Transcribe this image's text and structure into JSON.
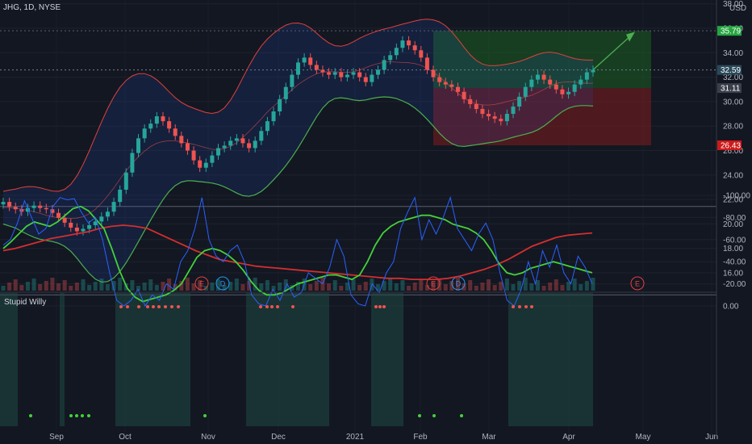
{
  "header": {
    "symbol_line": "JHG, 1D, NYSE",
    "currency": "USD"
  },
  "colors": {
    "background": "#131722",
    "up": "#26a69a",
    "down": "#ef5350",
    "bb_upper": "#e0413d",
    "bb_lower": "#4caf50",
    "bb_basis": "#ef5350",
    "position_profit": "#1b5e20",
    "position_loss": "#7f1d1d",
    "target_label_bg": "#26a641",
    "stop_label_bg": "#cc1a1a",
    "price_label_bg": "#2a4a5a",
    "osc_fast": "#2962ff",
    "osc_slow": "#43d13a",
    "osc_trend": "#d32f2f"
  },
  "chart_data": [
    {
      "type": "candlestick",
      "title": "JHG, 1D, NYSE",
      "ylabel": "USD",
      "ylim": [
        15.0,
        38.0
      ],
      "y_ticks": [
        "16.00",
        "18.00",
        "20.00",
        "22.00",
        "24.00",
        "26.00",
        "28.00",
        "30.00",
        "32.00",
        "34.00",
        "36.00",
        "38.00"
      ],
      "x_ticks": [
        "Sep",
        "Oct",
        "Nov",
        "Dec",
        "2021",
        "Feb",
        "Mar",
        "Apr",
        "May",
        "Jun"
      ],
      "price_labels": {
        "target": "35.79",
        "last": "32.59",
        "stop_side": "31.11",
        "stop": "26.43"
      },
      "events": [
        "E",
        "D",
        "E",
        "D",
        "E"
      ],
      "close_series": [
        21.8,
        21.4,
        21.2,
        21.0,
        21.3,
        21.5,
        21.3,
        21.2,
        20.9,
        20.5,
        20.1,
        19.7,
        19.4,
        19.6,
        19.9,
        20.2,
        20.6,
        21.0,
        21.8,
        22.8,
        24.2,
        25.8,
        27.0,
        27.8,
        28.2,
        28.8,
        28.4,
        27.8,
        27.2,
        26.6,
        26.0,
        25.2,
        24.6,
        25.0,
        25.6,
        26.2,
        26.4,
        26.8,
        27.0,
        26.6,
        26.2,
        26.8,
        27.6,
        28.4,
        29.2,
        30.2,
        31.2,
        32.2,
        33.2,
        33.6,
        33.0,
        32.6,
        32.4,
        32.2,
        32.4,
        32.0,
        32.2,
        32.4,
        32.0,
        31.6,
        32.2,
        32.6,
        33.4,
        33.8,
        34.4,
        35.0,
        34.6,
        34.2,
        33.6,
        32.6,
        32.0,
        31.6,
        31.4,
        31.2,
        30.8,
        30.2,
        29.8,
        29.4,
        29.0,
        28.8,
        28.6,
        28.4,
        29.0,
        29.6,
        30.4,
        31.2,
        31.8,
        32.2,
        31.8,
        31.4,
        31.0,
        30.6,
        30.8,
        31.4,
        31.8,
        32.4,
        32.6
      ]
    },
    {
      "type": "line",
      "title": "Stupid Willy",
      "ylim": [
        -100,
        0
      ],
      "y_ticks": [
        "0.00",
        "-20.00",
        "-40.00",
        "-60.00",
        "-80.00",
        "-100.00"
      ],
      "series": [
        {
          "values": [
            -55,
            -60,
            -75,
            -95,
            -80,
            -65,
            -70,
            -90,
            -98,
            -96,
            -97,
            -85,
            -75,
            -80,
            -60,
            -30,
            -5,
            0,
            -5,
            -15,
            0,
            -10,
            -5,
            -20,
            -15,
            -40,
            -50,
            -70,
            -98,
            -60,
            -45,
            -40,
            -50,
            -55,
            -40,
            -10,
            -2,
            0,
            -15,
            -5,
            -20,
            -8,
            -12,
            -30,
            -25,
            -20,
            -35,
            -60,
            -45,
            -10,
            -2,
            0,
            -20,
            -12,
            -30,
            -40,
            -70,
            -85,
            -98,
            -60,
            -78,
            -65,
            -80,
            -98,
            -70,
            -60,
            -50,
            -65,
            -75,
            -60,
            -30,
            -5,
            0,
            -15,
            -40,
            -20,
            -50,
            -35,
            -55,
            -30,
            -20,
            -45,
            -35,
            -20
          ]
        },
        {
          "values": [
            -52,
            -58,
            -65,
            -72,
            -76,
            -74,
            -72,
            -76,
            -82,
            -88,
            -90,
            -86,
            -78,
            -70,
            -52,
            -32,
            -16,
            -8,
            -4,
            -6,
            -8,
            -10,
            -14,
            -20,
            -32,
            -44,
            -50,
            -52,
            -50,
            -46,
            -40,
            -32,
            -22,
            -14,
            -10,
            -10,
            -12,
            -16,
            -20,
            -22,
            -24,
            -26,
            -28,
            -28,
            -26,
            -24,
            -28,
            -40,
            -55,
            -66,
            -72,
            -76,
            -78,
            -80,
            -82,
            -82,
            -80,
            -78,
            -74,
            -72,
            -70,
            -66,
            -60,
            -50,
            -38,
            -30,
            -28,
            -30,
            -34,
            -36,
            -38,
            -40,
            -38,
            -36,
            -34,
            -32,
            -30
          ]
        },
        {
          "values": [
            -50,
            -52,
            -55,
            -58,
            -61,
            -63,
            -65,
            -67,
            -70,
            -72,
            -73,
            -72,
            -70,
            -65,
            -60,
            -55,
            -50,
            -46,
            -42,
            -40,
            -38,
            -36,
            -35,
            -34,
            -33,
            -32,
            -31,
            -30,
            -29,
            -28,
            -27,
            -26,
            -25,
            -25,
            -24,
            -24,
            -24,
            -25,
            -27,
            -30,
            -33,
            -37,
            -42,
            -48,
            -54,
            -58,
            -62,
            -64,
            -65,
            -66
          ]
        }
      ]
    }
  ]
}
